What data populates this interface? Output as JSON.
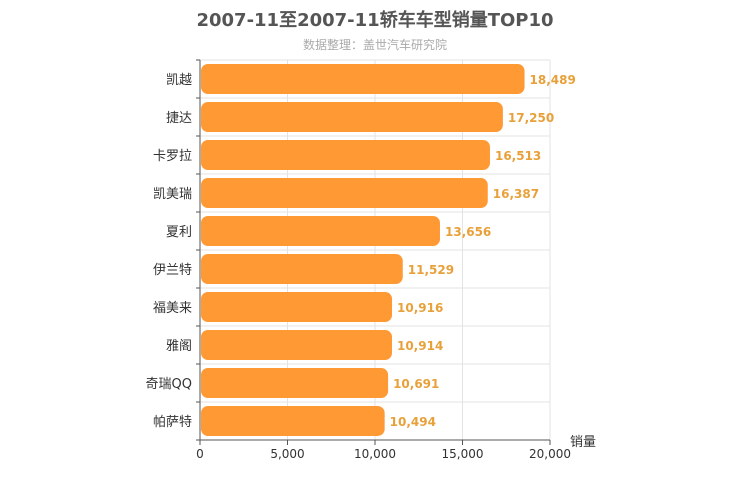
{
  "chart_data": {
    "type": "bar",
    "orientation": "horizontal",
    "title": "2007-11至2007-11轿车车型销量TOP10",
    "subtitle": "数据整理：盖世汽车研究院",
    "xlabel": "销量",
    "ylabel": "",
    "categories": [
      "凯越",
      "捷达",
      "卡罗拉",
      "凯美瑞",
      "夏利",
      "伊兰特",
      "福美来",
      "雅阁",
      "奇瑞QQ",
      "帕萨特"
    ],
    "values": [
      18489,
      17250,
      16513,
      16387,
      13656,
      11529,
      10916,
      10914,
      10691,
      10494
    ],
    "value_labels": [
      "18,489",
      "17,250",
      "16,513",
      "16,387",
      "13,656",
      "11,529",
      "10,916",
      "10,914",
      "10,691",
      "10,494"
    ],
    "xlim": [
      0,
      20000
    ],
    "xticks": [
      0,
      5000,
      10000,
      15000,
      20000
    ],
    "xtick_labels": [
      "0",
      "5,000",
      "10,000",
      "15,000",
      "20,000"
    ],
    "grid": true,
    "legend": "none",
    "bar_color": "#ff9933",
    "label_color": "#e8a13a"
  }
}
